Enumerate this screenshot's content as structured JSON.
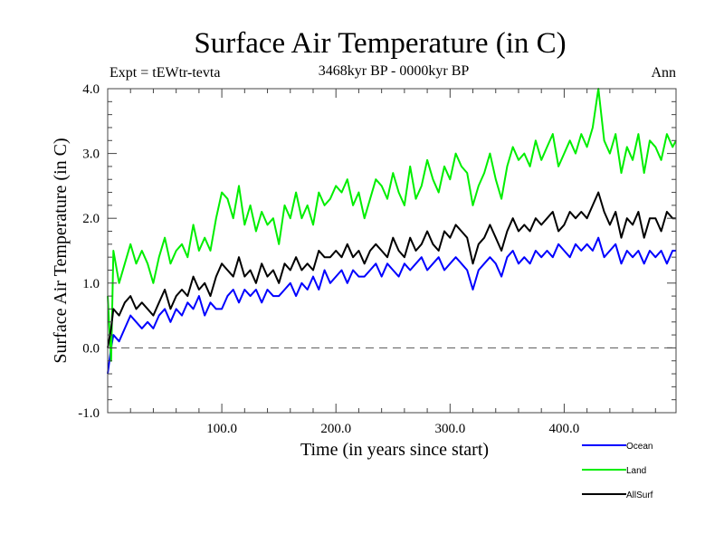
{
  "chart_data": {
    "type": "line",
    "title": "Surface Air Temperature (in C)",
    "subtitle": "3468kyr BP - 0000kyr BP",
    "left_annotation": "Expt = tEWtr-tevta",
    "right_annotation": "Ann",
    "xlabel": "Time (in years since start)",
    "ylabel": "Surface Air Temperature (in C)",
    "xlim": [
      0,
      498
    ],
    "ylim": [
      -1.0,
      4.0
    ],
    "xticks": [
      100,
      200,
      300,
      400
    ],
    "xtick_labels": [
      "100.0",
      "200.0",
      "300.0",
      "400.0"
    ],
    "yticks": [
      -1.0,
      0.0,
      1.0,
      2.0,
      3.0,
      4.0
    ],
    "ytick_labels": [
      "-1.0",
      "0.0",
      "1.0",
      "2.0",
      "3.0",
      "4.0"
    ],
    "reference_line": {
      "y": 0.0,
      "style": "dashed"
    },
    "grid": false,
    "legend_position": "bottom-right-outside",
    "x": [
      0,
      3,
      5,
      10,
      15,
      20,
      25,
      30,
      35,
      40,
      45,
      50,
      55,
      60,
      65,
      70,
      75,
      80,
      85,
      90,
      95,
      100,
      105,
      110,
      115,
      120,
      125,
      130,
      135,
      140,
      145,
      150,
      155,
      160,
      165,
      170,
      175,
      180,
      185,
      190,
      195,
      200,
      205,
      210,
      215,
      220,
      225,
      230,
      235,
      240,
      245,
      250,
      255,
      260,
      265,
      270,
      275,
      280,
      285,
      290,
      295,
      300,
      305,
      310,
      315,
      320,
      325,
      330,
      335,
      340,
      345,
      350,
      355,
      360,
      365,
      370,
      375,
      380,
      385,
      390,
      395,
      400,
      405,
      410,
      415,
      420,
      425,
      430,
      435,
      440,
      445,
      450,
      455,
      460,
      465,
      470,
      475,
      480,
      485,
      490,
      495,
      498
    ],
    "series": [
      {
        "name": "Ocean",
        "color": "#0000ff",
        "values": [
          -0.4,
          0.0,
          0.2,
          0.1,
          0.3,
          0.5,
          0.4,
          0.3,
          0.4,
          0.3,
          0.5,
          0.6,
          0.4,
          0.6,
          0.5,
          0.7,
          0.6,
          0.8,
          0.5,
          0.7,
          0.6,
          0.6,
          0.8,
          0.9,
          0.7,
          0.9,
          0.8,
          0.9,
          0.7,
          0.9,
          0.8,
          0.8,
          0.9,
          1.0,
          0.8,
          1.0,
          0.9,
          1.1,
          0.9,
          1.2,
          1.0,
          1.1,
          1.2,
          1.0,
          1.2,
          1.1,
          1.1,
          1.2,
          1.3,
          1.1,
          1.3,
          1.2,
          1.1,
          1.3,
          1.2,
          1.3,
          1.4,
          1.2,
          1.3,
          1.4,
          1.2,
          1.3,
          1.4,
          1.3,
          1.2,
          0.9,
          1.2,
          1.3,
          1.4,
          1.3,
          1.1,
          1.4,
          1.5,
          1.3,
          1.4,
          1.3,
          1.5,
          1.4,
          1.5,
          1.4,
          1.6,
          1.5,
          1.4,
          1.6,
          1.5,
          1.6,
          1.5,
          1.7,
          1.4,
          1.5,
          1.6,
          1.3,
          1.5,
          1.4,
          1.5,
          1.3,
          1.5,
          1.4,
          1.5,
          1.3,
          1.5,
          1.5
        ]
      },
      {
        "name": "Land",
        "color": "#00ee00",
        "values": [
          0.8,
          -0.2,
          1.5,
          1.0,
          1.3,
          1.6,
          1.3,
          1.5,
          1.3,
          1.0,
          1.4,
          1.7,
          1.3,
          1.5,
          1.6,
          1.4,
          1.9,
          1.5,
          1.7,
          1.5,
          2.0,
          2.4,
          2.3,
          2.0,
          2.5,
          1.9,
          2.2,
          1.8,
          2.1,
          1.9,
          2.0,
          1.6,
          2.2,
          2.0,
          2.4,
          2.0,
          2.2,
          1.9,
          2.4,
          2.2,
          2.3,
          2.5,
          2.4,
          2.6,
          2.2,
          2.4,
          2.0,
          2.3,
          2.6,
          2.5,
          2.3,
          2.7,
          2.4,
          2.2,
          2.8,
          2.3,
          2.5,
          2.9,
          2.6,
          2.4,
          2.8,
          2.6,
          3.0,
          2.8,
          2.7,
          2.2,
          2.5,
          2.7,
          3.0,
          2.6,
          2.3,
          2.8,
          3.1,
          2.9,
          3.0,
          2.8,
          3.2,
          2.9,
          3.1,
          3.3,
          2.8,
          3.0,
          3.2,
          3.0,
          3.3,
          3.1,
          3.4,
          4.0,
          3.2,
          3.0,
          3.3,
          2.7,
          3.1,
          2.9,
          3.3,
          2.7,
          3.2,
          3.1,
          2.9,
          3.3,
          3.1,
          3.2
        ]
      },
      {
        "name": "AllSurf",
        "color": "#000000",
        "values": [
          0.0,
          0.3,
          0.6,
          0.5,
          0.7,
          0.8,
          0.6,
          0.7,
          0.6,
          0.5,
          0.7,
          0.9,
          0.6,
          0.8,
          0.9,
          0.8,
          1.1,
          0.9,
          1.0,
          0.8,
          1.1,
          1.3,
          1.2,
          1.1,
          1.4,
          1.1,
          1.2,
          1.0,
          1.3,
          1.1,
          1.2,
          1.0,
          1.3,
          1.2,
          1.4,
          1.2,
          1.3,
          1.2,
          1.5,
          1.4,
          1.4,
          1.5,
          1.4,
          1.6,
          1.4,
          1.5,
          1.3,
          1.5,
          1.6,
          1.5,
          1.4,
          1.7,
          1.5,
          1.4,
          1.7,
          1.5,
          1.6,
          1.8,
          1.6,
          1.5,
          1.8,
          1.7,
          1.9,
          1.8,
          1.7,
          1.3,
          1.6,
          1.7,
          1.9,
          1.7,
          1.5,
          1.8,
          2.0,
          1.8,
          1.9,
          1.8,
          2.0,
          1.9,
          2.0,
          2.1,
          1.8,
          1.9,
          2.1,
          2.0,
          2.1,
          2.0,
          2.2,
          2.4,
          2.1,
          1.9,
          2.1,
          1.7,
          2.0,
          1.9,
          2.1,
          1.7,
          2.0,
          2.0,
          1.8,
          2.1,
          2.0,
          2.0
        ]
      }
    ]
  }
}
